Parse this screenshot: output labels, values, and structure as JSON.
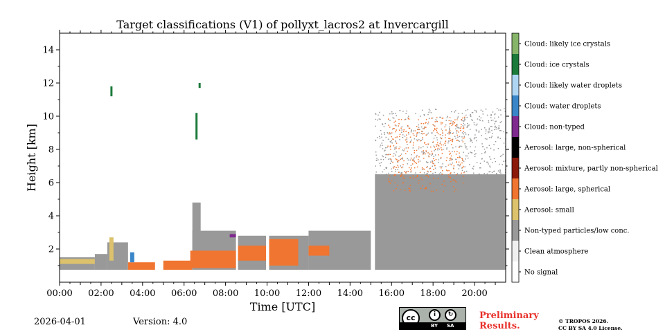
{
  "chart_data": {
    "type": "heatmap",
    "title": "Target classifications (V1) of pollyxt_lacros2 at Invercargill",
    "xlabel": "Time [UTC]",
    "ylabel": "Height [km]",
    "xlim": [
      0,
      21.5
    ],
    "ylim": [
      0,
      15
    ],
    "x_ticks": [
      0,
      2,
      4,
      6,
      8,
      10,
      12,
      14,
      16,
      18,
      20
    ],
    "x_tick_labels": [
      "00:00",
      "02:00",
      "04:00",
      "06:00",
      "08:00",
      "10:00",
      "12:00",
      "14:00",
      "16:00",
      "18:00",
      "20:00"
    ],
    "y_ticks": [
      2,
      4,
      6,
      8,
      10,
      12,
      14
    ],
    "y_tick_labels": [
      "2",
      "4",
      "6",
      "8",
      "10",
      "12",
      "14"
    ],
    "classes": [
      {
        "label": "No signal",
        "color": "#ffffff"
      },
      {
        "label": "Clean atmosphere",
        "color": "#f0f0f0"
      },
      {
        "label": "Non-typed particles/low conc.",
        "color": "#999999"
      },
      {
        "label": "Aerosol: small",
        "color": "#dcc26c"
      },
      {
        "label": "Aerosol: large, spherical",
        "color": "#f07530"
      },
      {
        "label": "Aerosol: mixture, partly non-spherical",
        "color": "#8b1a0a"
      },
      {
        "label": "Aerosol: large, non-spherical",
        "color": "#000000"
      },
      {
        "label": "Cloud: non-typed",
        "color": "#7f2a8f"
      },
      {
        "label": "Cloud: water droplets",
        "color": "#3a86c9"
      },
      {
        "label": "Cloud: likely water droplets",
        "color": "#aed5f2"
      },
      {
        "label": "Cloud: ice crystals",
        "color": "#1b7a3a"
      },
      {
        "label": "Cloud: likely ice crystals",
        "color": "#86b56a"
      }
    ],
    "regions": [
      {
        "t0": 0.0,
        "t1": 1.7,
        "h0": 0.75,
        "h1": 1.5,
        "cls": 2
      },
      {
        "t0": 0.0,
        "t1": 1.7,
        "h0": 1.1,
        "h1": 1.4,
        "cls": 3
      },
      {
        "t0": 1.7,
        "t1": 2.3,
        "h0": 0.75,
        "h1": 1.7,
        "cls": 2
      },
      {
        "t0": 2.3,
        "t1": 3.3,
        "h0": 0.75,
        "h1": 2.4,
        "cls": 2
      },
      {
        "t0": 2.4,
        "t1": 2.6,
        "h0": 1.3,
        "h1": 2.7,
        "cls": 3
      },
      {
        "t0": 3.3,
        "t1": 4.6,
        "h0": 0.75,
        "h1": 1.2,
        "cls": 4
      },
      {
        "t0": 3.4,
        "t1": 3.6,
        "h0": 1.2,
        "h1": 1.8,
        "cls": 8
      },
      {
        "t0": 5.0,
        "t1": 6.4,
        "h0": 0.75,
        "h1": 1.3,
        "cls": 4
      },
      {
        "t0": 6.4,
        "t1": 6.8,
        "h0": 1.3,
        "h1": 4.8,
        "cls": 2
      },
      {
        "t0": 6.4,
        "t1": 8.5,
        "h0": 0.75,
        "h1": 3.1,
        "cls": 2
      },
      {
        "t0": 6.3,
        "t1": 8.5,
        "h0": 0.85,
        "h1": 1.9,
        "cls": 4
      },
      {
        "t0": 8.6,
        "t1": 9.95,
        "h0": 0.75,
        "h1": 2.8,
        "cls": 2
      },
      {
        "t0": 8.6,
        "t1": 9.95,
        "h0": 1.3,
        "h1": 2.2,
        "cls": 4
      },
      {
        "t0": 10.1,
        "t1": 12.0,
        "h0": 0.75,
        "h1": 2.8,
        "cls": 2
      },
      {
        "t0": 10.1,
        "t1": 11.5,
        "h0": 1.0,
        "h1": 2.6,
        "cls": 4
      },
      {
        "t0": 12.0,
        "t1": 15.0,
        "h0": 0.75,
        "h1": 3.1,
        "cls": 2
      },
      {
        "t0": 12.0,
        "t1": 13.0,
        "h0": 1.6,
        "h1": 2.2,
        "cls": 4
      },
      {
        "t0": 15.2,
        "t1": 21.5,
        "h0": 0.75,
        "h1": 6.5,
        "cls": 2
      },
      {
        "t0": 15.2,
        "t1": 21.5,
        "h0": 6.5,
        "h1": 10.5,
        "cls": 2,
        "sparse": true
      },
      {
        "t0": 15.8,
        "t1": 19.5,
        "h0": 5.5,
        "h1": 10.0,
        "cls": 4,
        "sparse": true
      },
      {
        "t0": 2.45,
        "t1": 2.55,
        "h0": 11.2,
        "h1": 11.8,
        "cls": 10
      },
      {
        "t0": 6.55,
        "t1": 6.65,
        "h0": 8.6,
        "h1": 10.2,
        "cls": 10
      },
      {
        "t0": 6.7,
        "t1": 6.8,
        "h0": 11.7,
        "h1": 12.0,
        "cls": 10
      },
      {
        "t0": 8.2,
        "t1": 8.5,
        "h0": 2.7,
        "h1": 2.9,
        "cls": 7
      }
    ]
  },
  "footer": {
    "date": "2026-04-01",
    "version": "Version: 4.0",
    "preliminary": "Preliminary Results.",
    "copyright_line1": "© TROPOS 2026.",
    "copyright_line2": "CC BY SA 4.0 License.",
    "license_badge": {
      "cc": "cc",
      "by": "BY",
      "sa": "SA"
    }
  }
}
